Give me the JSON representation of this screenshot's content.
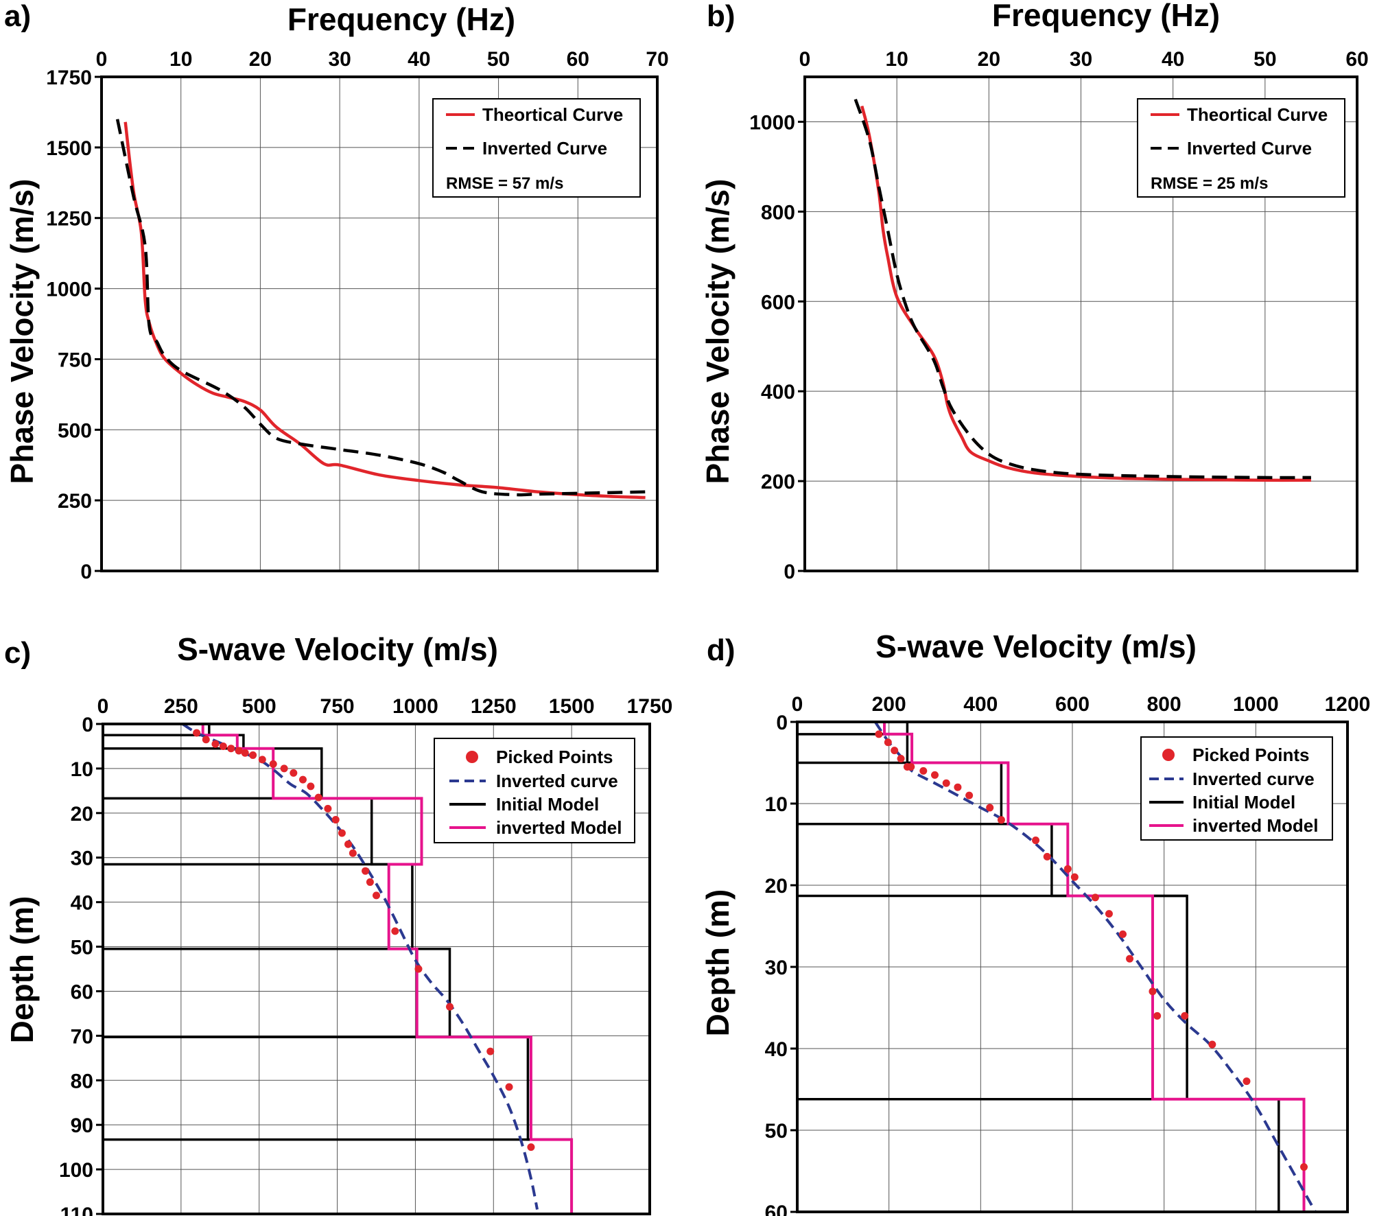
{
  "colors": {
    "theoretical": "#e1252b",
    "inverted_curve_black": "#000000",
    "inverted_curve_blue": "#2b3990",
    "picked_points": "#e1252b",
    "initial_model": "#000000",
    "inverted_model": "#e6138c"
  },
  "chart_data": [
    {
      "id": "a",
      "panel_label": "a)",
      "type": "line",
      "title": "Frequency (Hz)",
      "xlabel": "Frequency (Hz)",
      "ylabel": "Phase Velocity (m/s)",
      "xlim": [
        0,
        70
      ],
      "ylim": [
        0,
        1750
      ],
      "xticks": [
        0,
        10,
        20,
        30,
        40,
        50,
        60,
        70
      ],
      "yticks": [
        0,
        250,
        500,
        750,
        1000,
        1250,
        1500,
        1750
      ],
      "grid": true,
      "legend_position": "top-right",
      "legend": [
        "Theortical Curve",
        "Inverted Curve"
      ],
      "annotation": "RMSE = 57 m/s",
      "series": [
        {
          "name": "Theortical Curve",
          "color_key": "theoretical",
          "style": "solid",
          "x": [
            3,
            4,
            5,
            5.5,
            6,
            7,
            8,
            10,
            12,
            14,
            16,
            18,
            20,
            22,
            25,
            28,
            30,
            35,
            40,
            45,
            50,
            55,
            60,
            65,
            68.5
          ],
          "y": [
            1590,
            1350,
            1200,
            960,
            880,
            800,
            750,
            700,
            660,
            630,
            615,
            600,
            570,
            510,
            450,
            380,
            375,
            340,
            320,
            305,
            295,
            280,
            270,
            263,
            260
          ]
        },
        {
          "name": "Inverted Curve",
          "color_key": "inverted_curve_black",
          "style": "dashed",
          "x": [
            2,
            4,
            5.5,
            6,
            7,
            8,
            10,
            15,
            18,
            20,
            22,
            25,
            30,
            35,
            40,
            43,
            45,
            48,
            52,
            55,
            60,
            65,
            68.5
          ],
          "y": [
            1600,
            1330,
            1150,
            870,
            810,
            760,
            710,
            640,
            580,
            520,
            470,
            450,
            430,
            410,
            380,
            350,
            320,
            280,
            270,
            272,
            275,
            278,
            280
          ]
        }
      ]
    },
    {
      "id": "b",
      "panel_label": "b)",
      "type": "line",
      "title": "Frequency (Hz)",
      "xlabel": "Frequency (Hz)",
      "ylabel": "Phase Velocity (m/s)",
      "xlim": [
        0,
        60
      ],
      "ylim": [
        0,
        1100
      ],
      "xticks": [
        0,
        10,
        20,
        30,
        40,
        50,
        60
      ],
      "yticks": [
        0,
        200,
        400,
        600,
        800,
        1000
      ],
      "grid": true,
      "legend_position": "top-right",
      "legend": [
        "Theortical Curve",
        "Inverted Curve"
      ],
      "annotation": "RMSE = 25 m/s",
      "series": [
        {
          "name": "Theortical Curve",
          "color_key": "theoretical",
          "style": "solid",
          "x": [
            6.2,
            7,
            8,
            8.5,
            9,
            10,
            12,
            14,
            15,
            15.5,
            16,
            17,
            18,
            20,
            22,
            25,
            30,
            35,
            40,
            45,
            50,
            55
          ],
          "y": [
            1035,
            970,
            850,
            760,
            700,
            610,
            540,
            480,
            420,
            370,
            340,
            300,
            265,
            245,
            230,
            218,
            210,
            206,
            204,
            203,
            202,
            202
          ]
        },
        {
          "name": "Inverted Curve",
          "color_key": "inverted_curve_black",
          "style": "dashed",
          "x": [
            5.5,
            7,
            8,
            9,
            10,
            11,
            12,
            14,
            15,
            16,
            18,
            20,
            22,
            25,
            30,
            40,
            50,
            55
          ],
          "y": [
            1050,
            960,
            860,
            760,
            660,
            590,
            540,
            470,
            410,
            360,
            300,
            260,
            240,
            225,
            215,
            210,
            208,
            208
          ]
        }
      ]
    },
    {
      "id": "c",
      "panel_label": "c)",
      "type": "line",
      "title": "S-wave Velocity (m/s)",
      "xlabel": "S-wave Velocity (m/s)",
      "ylabel": "Depth (m)",
      "xlim": [
        0,
        1750
      ],
      "ylim": [
        0,
        110
      ],
      "y_inverted": true,
      "xticks": [
        0,
        250,
        500,
        750,
        1000,
        1250,
        1500,
        1750
      ],
      "yticks": [
        0,
        10,
        20,
        30,
        40,
        50,
        60,
        70,
        80,
        90,
        100,
        110
      ],
      "grid": true,
      "legend_position": "top-right",
      "legend": [
        "Picked Points",
        "Inverted curve",
        "Initial Model",
        "inverted Model"
      ],
      "picked_points": {
        "vs": [
          300,
          330,
          360,
          385,
          410,
          435,
          455,
          480,
          510,
          545,
          580,
          610,
          640,
          665,
          690,
          720,
          745,
          765,
          785,
          800,
          840,
          855,
          875,
          935,
          1010,
          1110,
          1240,
          1300,
          1370
        ],
        "depth": [
          2,
          3.5,
          4.5,
          5,
          5.5,
          6,
          6.5,
          7,
          8,
          9,
          10,
          11,
          12.5,
          14,
          16.5,
          19,
          21.5,
          24.5,
          27,
          29,
          33,
          35.5,
          38.5,
          46.5,
          55,
          63.5,
          73.5,
          81.5,
          95
        ]
      },
      "inverted_curve": {
        "vs": [
          255,
          300,
          350,
          400,
          450,
          500,
          550,
          600,
          650,
          700,
          750,
          800,
          850,
          900,
          950,
          1000,
          1050,
          1100,
          1150,
          1200,
          1250,
          1300,
          1340,
          1370,
          1390
        ],
        "depth": [
          0,
          2,
          3.5,
          5,
          6.5,
          8,
          10.5,
          13.5,
          15.5,
          19,
          23,
          27.5,
          33,
          39,
          46,
          53,
          58,
          62,
          67,
          73,
          79,
          86,
          94,
          102,
          109
        ]
      },
      "initial_model": [
        {
          "vs": 340,
          "top": 0,
          "bottom": 2.5
        },
        {
          "vs": 450,
          "top": 2.5,
          "bottom": 5.5
        },
        {
          "vs": 700,
          "top": 5.5,
          "bottom": 16.7
        },
        {
          "vs": 860,
          "top": 16.7,
          "bottom": 31.5
        },
        {
          "vs": 990,
          "top": 31.5,
          "bottom": 50.5
        },
        {
          "vs": 1110,
          "top": 50.5,
          "bottom": 70.3
        },
        {
          "vs": 1360,
          "top": 70.3,
          "bottom": 93.3
        },
        {
          "vs": 1500,
          "top": 93.3,
          "bottom": 110
        }
      ],
      "inverted_model": [
        {
          "vs": 320,
          "top": 0,
          "bottom": 2.5
        },
        {
          "vs": 430,
          "top": 2.5,
          "bottom": 5.5
        },
        {
          "vs": 545,
          "top": 5.5,
          "bottom": 16.7
        },
        {
          "vs": 1020,
          "top": 16.7,
          "bottom": 31.5
        },
        {
          "vs": 915,
          "top": 31.5,
          "bottom": 50.5
        },
        {
          "vs": 1005,
          "top": 50.5,
          "bottom": 70.3
        },
        {
          "vs": 1370,
          "top": 70.3,
          "bottom": 93.3
        },
        {
          "vs": 1500,
          "top": 93.3,
          "bottom": 110
        }
      ]
    },
    {
      "id": "d",
      "panel_label": "d)",
      "type": "line",
      "title": "S-wave Velocity (m/s)",
      "xlabel": "S-wave Velocity (m/s)",
      "ylabel": "Depth (m)",
      "xlim": [
        0,
        1200
      ],
      "ylim": [
        0,
        60
      ],
      "y_inverted": true,
      "xticks": [
        0,
        200,
        400,
        600,
        800,
        1000,
        1200
      ],
      "yticks": [
        0,
        10,
        20,
        30,
        40,
        50,
        60
      ],
      "grid": true,
      "legend_position": "top-right",
      "legend": [
        "Picked Points",
        "Inverted curve",
        "Initial Model",
        "inverted Model"
      ],
      "picked_points": {
        "vs": [
          178,
          198,
          212,
          226,
          240,
          248,
          275,
          300,
          325,
          350,
          375,
          420,
          445,
          520,
          545,
          590,
          605,
          650,
          680,
          710,
          725,
          775,
          785,
          845,
          905,
          980,
          1105
        ],
        "depth": [
          1.5,
          2.5,
          3.5,
          4.5,
          5.5,
          5.5,
          6,
          6.5,
          7.5,
          8,
          9,
          10.5,
          12,
          14.5,
          16.5,
          18,
          19,
          21.5,
          23.5,
          26,
          29,
          33,
          36,
          36,
          39.5,
          44,
          54.5
        ]
      },
      "inverted_curve": {
        "vs": [
          170,
          200,
          230,
          250,
          300,
          350,
          400,
          450,
          500,
          550,
          600,
          650,
          700,
          750,
          800,
          850,
          900,
          950,
          1000,
          1050,
          1100,
          1130
        ],
        "depth": [
          0,
          2.5,
          4.5,
          6,
          7.5,
          9,
          10.5,
          12,
          14,
          16.5,
          19.5,
          22.5,
          26,
          30,
          34,
          37,
          39.5,
          43,
          47,
          52,
          57,
          60
        ]
      },
      "initial_model": [
        {
          "vs": 240,
          "top": 0,
          "bottom": 1.5
        },
        {
          "vs": 240,
          "top": 1.5,
          "bottom": 5
        },
        {
          "vs": 445,
          "top": 5,
          "bottom": 12.5
        },
        {
          "vs": 555,
          "top": 12.5,
          "bottom": 21.3
        },
        {
          "vs": 850,
          "top": 21.3,
          "bottom": 46.2
        },
        {
          "vs": 1050,
          "top": 46.2,
          "bottom": 60
        }
      ],
      "inverted_model": [
        {
          "vs": 190,
          "top": 0,
          "bottom": 1.5
        },
        {
          "vs": 250,
          "top": 1.5,
          "bottom": 5
        },
        {
          "vs": 460,
          "top": 5,
          "bottom": 12.5
        },
        {
          "vs": 590,
          "top": 12.5,
          "bottom": 21.3
        },
        {
          "vs": 775,
          "top": 21.3,
          "bottom": 46.2
        },
        {
          "vs": 1105,
          "top": 46.2,
          "bottom": 60
        }
      ]
    }
  ]
}
